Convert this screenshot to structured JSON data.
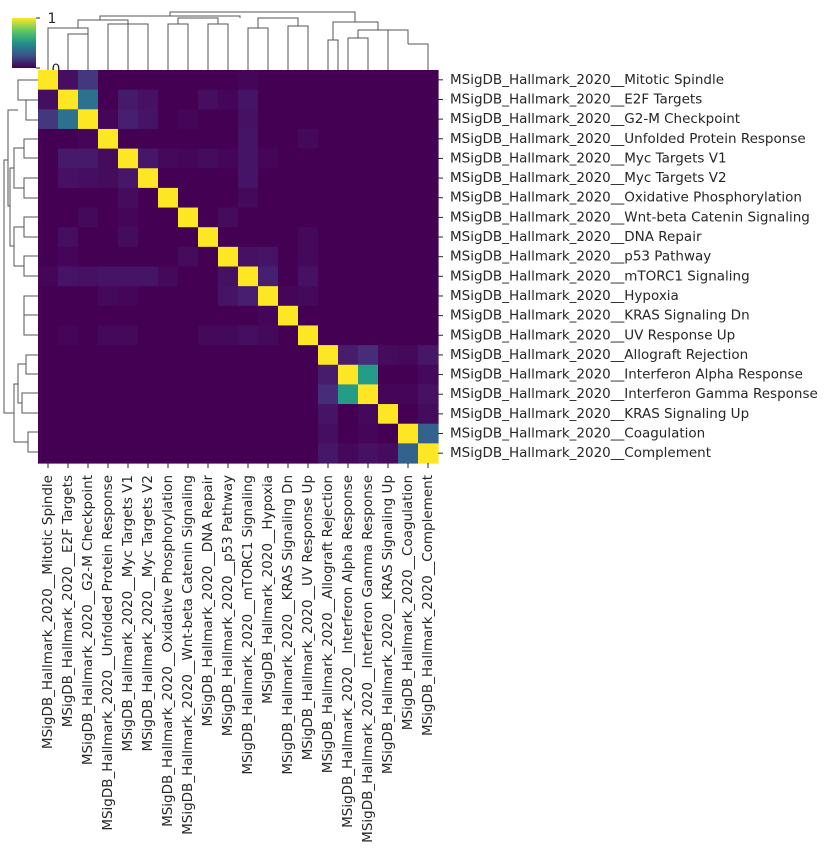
{
  "chart_data": {
    "type": "heatmap",
    "title": "",
    "xlabel": "",
    "ylabel": "",
    "colormap": "viridis",
    "vmin": 0,
    "vmax": 1,
    "colorbar": {
      "ticks": [
        "0",
        "1"
      ],
      "placement": "top-left"
    },
    "row_labels": [
      "MSigDB_Hallmark_2020__Mitotic Spindle",
      "MSigDB_Hallmark_2020__E2F Targets",
      "MSigDB_Hallmark_2020__G2-M Checkpoint",
      "MSigDB_Hallmark_2020__Unfolded Protein Response",
      "MSigDB_Hallmark_2020__Myc Targets V1",
      "MSigDB_Hallmark_2020__Myc Targets V2",
      "MSigDB_Hallmark_2020__Oxidative Phosphorylation",
      "MSigDB_Hallmark_2020__Wnt-beta Catenin Signaling",
      "MSigDB_Hallmark_2020__DNA Repair",
      "MSigDB_Hallmark_2020__p53 Pathway",
      "MSigDB_Hallmark_2020__mTORC1 Signaling",
      "MSigDB_Hallmark_2020__Hypoxia",
      "MSigDB_Hallmark_2020__KRAS Signaling Dn",
      "MSigDB_Hallmark_2020__UV Response Up",
      "MSigDB_Hallmark_2020__Allograft Rejection",
      "MSigDB_Hallmark_2020__Interferon Alpha Response",
      "MSigDB_Hallmark_2020__Interferon Gamma Response",
      "MSigDB_Hallmark_2020__KRAS Signaling Up",
      "MSigDB_Hallmark_2020__Coagulation",
      "MSigDB_Hallmark_2020__Complement"
    ],
    "col_labels": [
      "MSigDB_Hallmark_2020__Mitotic Spindle",
      "MSigDB_Hallmark_2020__E2F Targets",
      "MSigDB_Hallmark_2020__G2-M Checkpoint",
      "MSigDB_Hallmark_2020__Unfolded Protein Response",
      "MSigDB_Hallmark_2020__Myc Targets V1",
      "MSigDB_Hallmark_2020__Myc Targets V2",
      "MSigDB_Hallmark_2020__Oxidative Phosphorylation",
      "MSigDB_Hallmark_2020__Wnt-beta Catenin Signaling",
      "MSigDB_Hallmark_2020__DNA Repair",
      "MSigDB_Hallmark_2020__p53 Pathway",
      "MSigDB_Hallmark_2020__mTORC1 Signaling",
      "MSigDB_Hallmark_2020__Hypoxia",
      "MSigDB_Hallmark_2020__KRAS Signaling Dn",
      "MSigDB_Hallmark_2020__UV Response Up",
      "MSigDB_Hallmark_2020__Allograft Rejection",
      "MSigDB_Hallmark_2020__Interferon Alpha Response",
      "MSigDB_Hallmark_2020__Interferon Gamma Response",
      "MSigDB_Hallmark_2020__KRAS Signaling Up",
      "MSigDB_Hallmark_2020__Coagulation",
      "MSigDB_Hallmark_2020__Complement"
    ],
    "values": [
      [
        1.0,
        0.05,
        0.18,
        0.0,
        0.0,
        0.0,
        0.0,
        0.0,
        0.0,
        0.0,
        0.02,
        0.0,
        0.0,
        0.0,
        0.0,
        0.0,
        0.0,
        0.0,
        0.0,
        0.0
      ],
      [
        0.05,
        1.0,
        0.38,
        0.0,
        0.09,
        0.06,
        0.0,
        0.0,
        0.05,
        0.02,
        0.07,
        0.0,
        0.0,
        0.0,
        0.0,
        0.0,
        0.0,
        0.0,
        0.0,
        0.0
      ],
      [
        0.18,
        0.38,
        1.0,
        0.02,
        0.11,
        0.07,
        0.0,
        0.02,
        0.0,
        0.0,
        0.06,
        0.0,
        0.0,
        0.0,
        0.0,
        0.0,
        0.0,
        0.0,
        0.0,
        0.0
      ],
      [
        0.0,
        0.0,
        0.02,
        1.0,
        0.0,
        0.0,
        0.0,
        0.0,
        0.0,
        0.0,
        0.07,
        0.0,
        0.0,
        0.03,
        0.0,
        0.0,
        0.0,
        0.0,
        0.0,
        0.0
      ],
      [
        0.0,
        0.09,
        0.09,
        0.04,
        1.0,
        0.08,
        0.03,
        0.02,
        0.04,
        0.02,
        0.07,
        0.02,
        0.0,
        0.0,
        0.0,
        0.0,
        0.0,
        0.0,
        0.0,
        0.0
      ],
      [
        0.0,
        0.06,
        0.05,
        0.04,
        0.08,
        1.0,
        0.0,
        0.0,
        0.0,
        0.0,
        0.07,
        0.0,
        0.0,
        0.0,
        0.0,
        0.0,
        0.0,
        0.0,
        0.0,
        0.0
      ],
      [
        0.0,
        0.0,
        0.0,
        0.0,
        0.04,
        0.0,
        1.0,
        0.0,
        0.0,
        0.0,
        0.03,
        0.0,
        0.0,
        0.0,
        0.0,
        0.0,
        0.0,
        0.0,
        0.0,
        0.0
      ],
      [
        0.0,
        0.0,
        0.03,
        0.0,
        0.02,
        0.0,
        0.0,
        1.0,
        0.0,
        0.04,
        0.0,
        0.0,
        0.0,
        0.0,
        0.0,
        0.0,
        0.0,
        0.0,
        0.0,
        0.0
      ],
      [
        0.0,
        0.05,
        0.0,
        0.0,
        0.04,
        0.0,
        0.0,
        0.0,
        1.0,
        0.0,
        0.0,
        0.0,
        0.0,
        0.03,
        0.0,
        0.0,
        0.0,
        0.0,
        0.0,
        0.0
      ],
      [
        0.0,
        0.02,
        0.0,
        0.0,
        0.0,
        0.0,
        0.0,
        0.04,
        0.0,
        1.0,
        0.06,
        0.07,
        0.0,
        0.03,
        0.0,
        0.0,
        0.0,
        0.0,
        0.0,
        0.0
      ],
      [
        0.02,
        0.07,
        0.06,
        0.07,
        0.07,
        0.07,
        0.03,
        0.0,
        0.0,
        0.06,
        1.0,
        0.11,
        0.0,
        0.06,
        0.0,
        0.0,
        0.0,
        0.0,
        0.0,
        0.0
      ],
      [
        0.0,
        0.0,
        0.0,
        0.03,
        0.02,
        0.0,
        0.0,
        0.0,
        0.0,
        0.07,
        0.11,
        1.0,
        0.02,
        0.03,
        0.0,
        0.0,
        0.0,
        0.0,
        0.0,
        0.0
      ],
      [
        0.0,
        0.0,
        0.0,
        0.0,
        0.0,
        0.0,
        0.0,
        0.0,
        0.0,
        0.0,
        0.0,
        0.02,
        1.0,
        0.0,
        0.0,
        0.0,
        0.0,
        0.0,
        0.0,
        0.0
      ],
      [
        0.0,
        0.02,
        0.0,
        0.03,
        0.03,
        0.0,
        0.0,
        0.0,
        0.03,
        0.03,
        0.05,
        0.03,
        0.0,
        1.0,
        0.0,
        0.0,
        0.0,
        0.0,
        0.0,
        0.0
      ],
      [
        0.0,
        0.0,
        0.0,
        0.0,
        0.0,
        0.0,
        0.0,
        0.0,
        0.0,
        0.0,
        0.0,
        0.0,
        0.0,
        0.0,
        1.0,
        0.1,
        0.15,
        0.04,
        0.03,
        0.08
      ],
      [
        0.0,
        0.0,
        0.0,
        0.0,
        0.0,
        0.0,
        0.0,
        0.0,
        0.0,
        0.0,
        0.0,
        0.0,
        0.0,
        0.0,
        0.1,
        1.0,
        0.55,
        0.0,
        0.0,
        0.03
      ],
      [
        0.0,
        0.0,
        0.0,
        0.0,
        0.0,
        0.0,
        0.0,
        0.0,
        0.0,
        0.0,
        0.0,
        0.0,
        0.0,
        0.0,
        0.15,
        0.55,
        1.0,
        0.02,
        0.02,
        0.06
      ],
      [
        0.0,
        0.0,
        0.0,
        0.0,
        0.0,
        0.0,
        0.0,
        0.0,
        0.0,
        0.0,
        0.0,
        0.0,
        0.0,
        0.0,
        0.07,
        0.0,
        0.03,
        1.0,
        0.0,
        0.04
      ],
      [
        0.0,
        0.0,
        0.0,
        0.0,
        0.0,
        0.0,
        0.0,
        0.0,
        0.0,
        0.0,
        0.0,
        0.0,
        0.0,
        0.0,
        0.05,
        0.0,
        0.02,
        0.0,
        1.0,
        0.32
      ],
      [
        0.0,
        0.0,
        0.0,
        0.0,
        0.0,
        0.0,
        0.0,
        0.0,
        0.0,
        0.0,
        0.0,
        0.0,
        0.0,
        0.0,
        0.08,
        0.03,
        0.06,
        0.04,
        0.32,
        1.0
      ]
    ]
  }
}
